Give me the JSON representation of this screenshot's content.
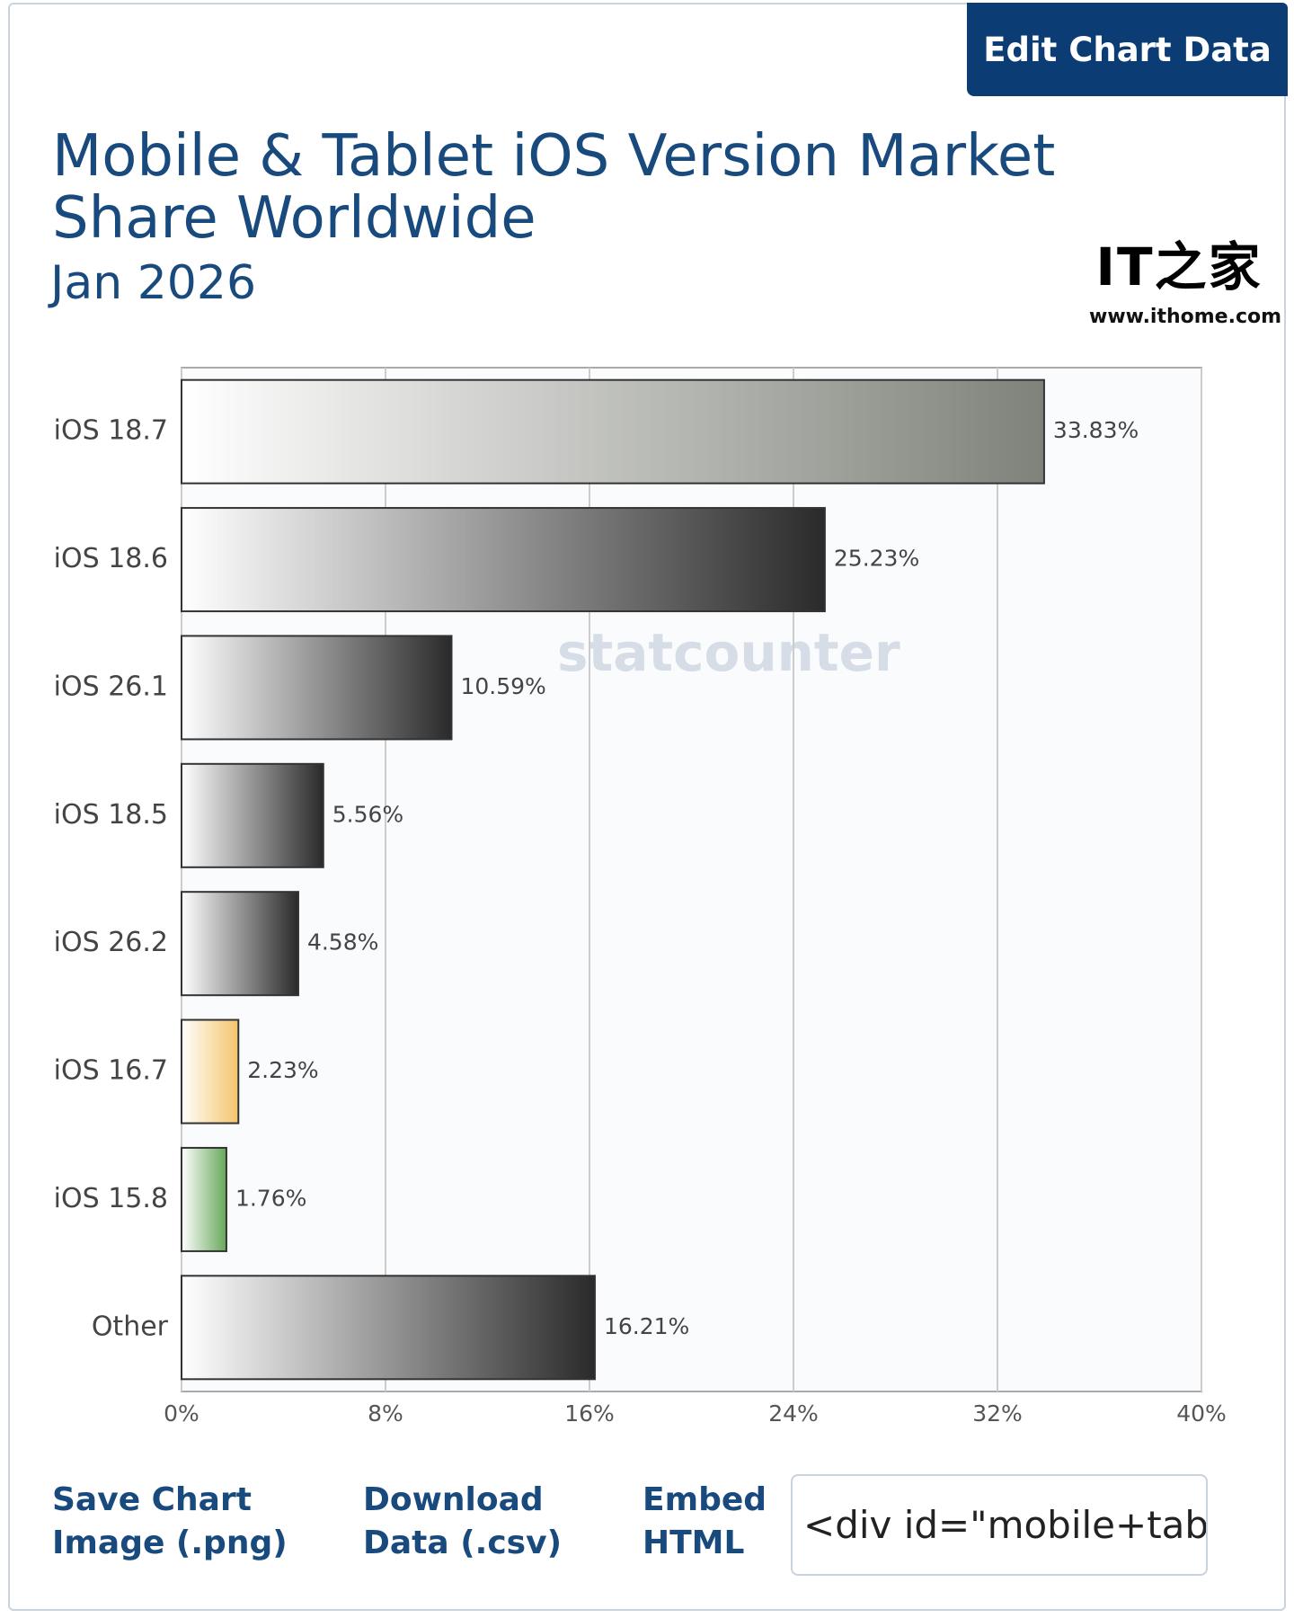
{
  "button": "Edit Chart Data",
  "logo": {
    "text": "IT之家",
    "url": "www.ithome.com"
  },
  "watermark": "statcounter",
  "chart_data": {
    "type": "bar",
    "orientation": "horizontal",
    "title": "Mobile & Tablet iOS Version Market Share Worldwide",
    "subtitle": "Jan 2026",
    "categories": [
      "iOS 18.7",
      "iOS 18.6",
      "iOS 26.1",
      "iOS 18.5",
      "iOS 26.2",
      "iOS 16.7",
      "iOS 15.8",
      "Other"
    ],
    "values": [
      33.83,
      25.23,
      10.59,
      5.56,
      4.58,
      2.23,
      1.76,
      16.21
    ],
    "value_labels": [
      "33.83%",
      "25.23%",
      "10.59%",
      "5.56%",
      "4.58%",
      "2.23%",
      "1.76%",
      "16.21%"
    ],
    "colors": [
      "#7f827a",
      "#2a2a2a",
      "#2a2a2a",
      "#2a2a2a",
      "#2a2a2a",
      "#f5c46a",
      "#66a85a",
      "#2a2a2a"
    ],
    "xlim": [
      0,
      40
    ],
    "xticks": [
      {
        "value": 0,
        "label": "0%"
      },
      {
        "value": 8,
        "label": "8%"
      },
      {
        "value": 16,
        "label": "16%"
      },
      {
        "value": 24,
        "label": "24%"
      },
      {
        "value": 32,
        "label": "32%"
      },
      {
        "value": 40,
        "label": "40%"
      }
    ],
    "grid": true
  },
  "links": [
    "Save Chart Image (.png)",
    "Download Data (.csv)",
    "Embed HTML"
  ],
  "embed_code": "<div id=\"mobile+tablet-i"
}
